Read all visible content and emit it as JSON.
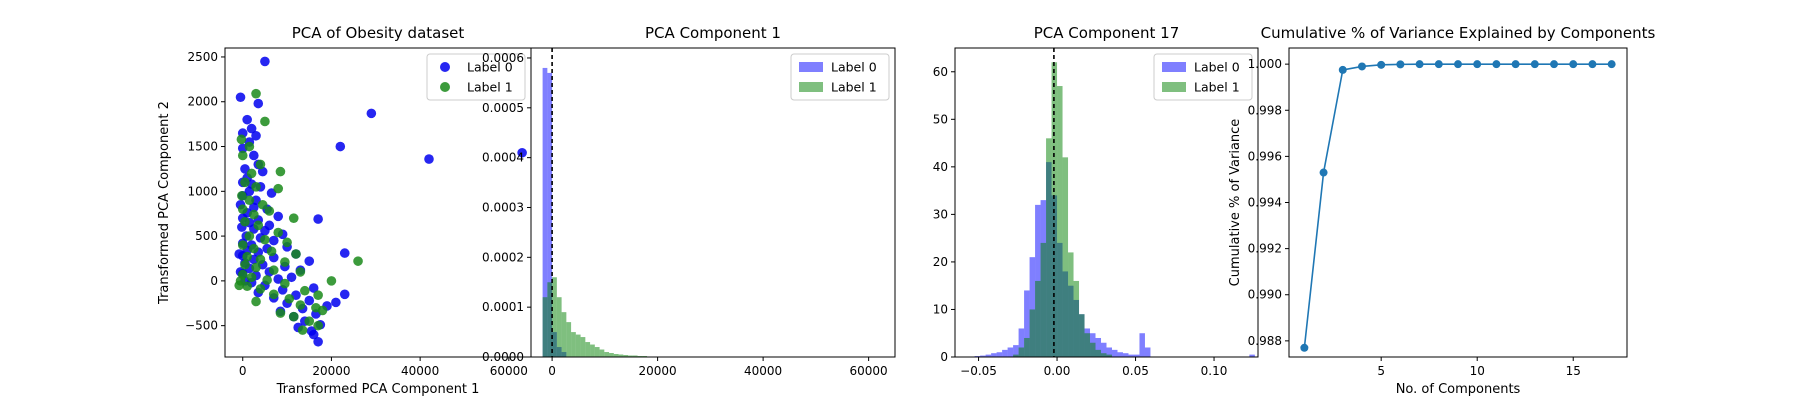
{
  "chart_data": [
    {
      "type": "scatter",
      "title": "PCA of Obesity dataset",
      "xlabel": "Transformed PCA Component 1",
      "ylabel": "Transformed PCA Component 2",
      "xlim": [
        -4000,
        65000
      ],
      "ylim": [
        -850,
        2600
      ],
      "xticks": [
        0,
        20000,
        40000,
        60000
      ],
      "xtick_labels": [
        "0",
        "20000",
        "40000",
        "60000"
      ],
      "yticks": [
        -500,
        0,
        500,
        1000,
        1500,
        2000,
        2500
      ],
      "ytick_labels": [
        "−500",
        "0",
        "500",
        "1000",
        "1500",
        "2000",
        "2500"
      ],
      "legend": "top-right",
      "series": [
        {
          "name": "Label 0",
          "color": "#0000ee",
          "points": [
            [
              5000,
              2450
            ],
            [
              -500,
              2050
            ],
            [
              3500,
              1980
            ],
            [
              1000,
              1800
            ],
            [
              2000,
              1700
            ],
            [
              0,
              1650
            ],
            [
              3000,
              1620
            ],
            [
              1500,
              1550
            ],
            [
              0,
              1480
            ],
            [
              2500,
              1400
            ],
            [
              3500,
              1300
            ],
            [
              500,
              1250
            ],
            [
              4500,
              1220
            ],
            [
              1000,
              1150
            ],
            [
              0,
              1100
            ],
            [
              2000,
              1080
            ],
            [
              4000,
              1050
            ],
            [
              1500,
              1000
            ],
            [
              6500,
              980
            ],
            [
              0,
              950
            ],
            [
              3000,
              900
            ],
            [
              -500,
              850
            ],
            [
              2500,
              820
            ],
            [
              5500,
              800
            ],
            [
              1000,
              760
            ],
            [
              8000,
              720
            ],
            [
              0,
              700
            ],
            [
              3500,
              680
            ],
            [
              1500,
              650
            ],
            [
              6000,
              620
            ],
            [
              -200,
              600
            ],
            [
              2500,
              580
            ],
            [
              5000,
              560
            ],
            [
              9000,
              520
            ],
            [
              800,
              500
            ],
            [
              4000,
              480
            ],
            [
              7000,
              450
            ],
            [
              0,
              420
            ],
            [
              2000,
              400
            ],
            [
              10000,
              380
            ],
            [
              5500,
              360
            ],
            [
              1000,
              340
            ],
            [
              3500,
              320
            ],
            [
              12000,
              300
            ],
            [
              0,
              280
            ],
            [
              7000,
              260
            ],
            [
              2500,
              240
            ],
            [
              15000,
              220
            ],
            [
              500,
              200
            ],
            [
              4500,
              180
            ],
            [
              9500,
              160
            ],
            [
              1500,
              140
            ],
            [
              13000,
              120
            ],
            [
              6000,
              100
            ],
            [
              0,
              80
            ],
            [
              3000,
              60
            ],
            [
              11000,
              40
            ],
            [
              8000,
              20
            ],
            [
              500,
              0
            ],
            [
              2000,
              -20
            ],
            [
              5000,
              -50
            ],
            [
              16000,
              -80
            ],
            [
              9000,
              -100
            ],
            [
              3500,
              -130
            ],
            [
              12000,
              -160
            ],
            [
              7000,
              -190
            ],
            [
              15000,
              -220
            ],
            [
              10000,
              -250
            ],
            [
              19000,
              -280
            ],
            [
              13500,
              -310
            ],
            [
              8500,
              -340
            ],
            [
              16500,
              -370
            ],
            [
              11500,
              -400
            ],
            [
              14000,
              -450
            ],
            [
              17500,
              -490
            ],
            [
              12500,
              -520
            ],
            [
              15500,
              -560
            ],
            [
              16000,
              -600
            ],
            [
              17000,
              -680
            ],
            [
              21000,
              -240
            ],
            [
              23000,
              -150
            ],
            [
              23000,
              310
            ],
            [
              22000,
              1500
            ],
            [
              29000,
              1870
            ],
            [
              42000,
              1360
            ],
            [
              63000,
              1430
            ],
            [
              17000,
              690
            ],
            [
              -800,
              300
            ],
            [
              -500,
              100
            ]
          ]
        },
        {
          "name": "Label 1",
          "color": "#1a8a1a",
          "points": [
            [
              3000,
              2090
            ],
            [
              5000,
              1780
            ],
            [
              -300,
              1580
            ],
            [
              1500,
              1500
            ],
            [
              0,
              1400
            ],
            [
              4000,
              1300
            ],
            [
              2000,
              1200
            ],
            [
              8500,
              1220
            ],
            [
              500,
              1100
            ],
            [
              3000,
              1050
            ],
            [
              8000,
              1030
            ],
            [
              -200,
              950
            ],
            [
              1500,
              900
            ],
            [
              4500,
              850
            ],
            [
              0,
              800
            ],
            [
              6000,
              780
            ],
            [
              2500,
              740
            ],
            [
              11500,
              700
            ],
            [
              500,
              660
            ],
            [
              3500,
              620
            ],
            [
              8000,
              540
            ],
            [
              1500,
              500
            ],
            [
              5000,
              460
            ],
            [
              10000,
              430
            ],
            [
              0,
              400
            ],
            [
              2500,
              360
            ],
            [
              6500,
              330
            ],
            [
              12000,
              300
            ],
            [
              1000,
              270
            ],
            [
              4000,
              240
            ],
            [
              9500,
              210
            ],
            [
              26000,
              220
            ],
            [
              500,
              180
            ],
            [
              3000,
              150
            ],
            [
              7000,
              120
            ],
            [
              13000,
              100
            ],
            [
              0,
              70
            ],
            [
              2000,
              40
            ],
            [
              5500,
              10
            ],
            [
              20000,
              0
            ],
            [
              9500,
              -30
            ],
            [
              1000,
              -60
            ],
            [
              4000,
              -90
            ],
            [
              14000,
              -110
            ],
            [
              7000,
              -150
            ],
            [
              17000,
              -160
            ],
            [
              10500,
              -200
            ],
            [
              3000,
              -230
            ],
            [
              13000,
              -270
            ],
            [
              16500,
              -300
            ],
            [
              18000,
              -330
            ],
            [
              8500,
              -360
            ],
            [
              11500,
              -400
            ],
            [
              15000,
              -450
            ],
            [
              17000,
              -500
            ],
            [
              13500,
              -550
            ],
            [
              -500,
              0
            ],
            [
              -800,
              -50
            ]
          ]
        }
      ]
    },
    {
      "type": "histogram",
      "title": "PCA Component 1",
      "xlim": [
        -4000,
        65000
      ],
      "ylim": [
        0,
        0.00062
      ],
      "xticks": [
        0,
        20000,
        40000,
        60000
      ],
      "xtick_labels": [
        "0",
        "20000",
        "40000",
        "60000"
      ],
      "yticks": [
        0,
        0.0001,
        0.0002,
        0.0003,
        0.0004,
        0.0005,
        0.0006
      ],
      "ytick_labels": [
        "0.0000",
        "0.0001",
        "0.0002",
        "0.0003",
        "0.0004",
        "0.0005",
        "0.0006"
      ],
      "legend": "top-right",
      "vline": 0,
      "series": [
        {
          "name": "Label 0",
          "color": "#0000ff",
          "alpha": 0.5,
          "bin_width": 900,
          "bins": [
            [
              -1800,
              0.00058
            ],
            [
              -900,
              0.00057
            ],
            [
              0,
              5e-05
            ],
            [
              900,
              2e-05
            ],
            [
              1800,
              1e-05
            ]
          ]
        },
        {
          "name": "Label 1",
          "color": "#008000",
          "alpha": 0.5,
          "bin_width": 900,
          "bins": [
            [
              -1800,
              0.00012
            ],
            [
              -900,
              0.00015
            ],
            [
              0,
              0.00016
            ],
            [
              900,
              0.00012
            ],
            [
              1800,
              9e-05
            ],
            [
              2700,
              7e-05
            ],
            [
              3600,
              5e-05
            ],
            [
              4500,
              4.5e-05
            ],
            [
              5400,
              4e-05
            ],
            [
              6300,
              3e-05
            ],
            [
              7200,
              2.5e-05
            ],
            [
              8100,
              2e-05
            ],
            [
              9000,
              1.5e-05
            ],
            [
              9900,
              1e-05
            ],
            [
              10800,
              8e-06
            ],
            [
              11700,
              6e-06
            ],
            [
              12600,
              5e-06
            ],
            [
              13500,
              4e-06
            ],
            [
              14400,
              3e-06
            ],
            [
              15300,
              3e-06
            ],
            [
              16200,
              2e-06
            ],
            [
              17100,
              2e-06
            ]
          ]
        }
      ]
    },
    {
      "type": "histogram",
      "title": "PCA Component 17",
      "xlim": [
        -0.065,
        0.128
      ],
      "ylim": [
        0,
        65
      ],
      "xticks": [
        -0.05,
        0.0,
        0.05,
        0.1
      ],
      "xtick_labels": [
        "−0.05",
        "0.00",
        "0.05",
        "0.10"
      ],
      "yticks": [
        0,
        10,
        20,
        30,
        40,
        50,
        60
      ],
      "ytick_labels": [
        "0",
        "10",
        "20",
        "30",
        "40",
        "50",
        "60"
      ],
      "legend": "top-right",
      "vline": -0.002,
      "series": [
        {
          "name": "Label 0",
          "color": "#0000ff",
          "alpha": 0.5,
          "bin_width": 0.0035,
          "bins": [
            [
              -0.0525,
              0.2
            ],
            [
              -0.049,
              0.3
            ],
            [
              -0.0455,
              0.5
            ],
            [
              -0.042,
              0.8
            ],
            [
              -0.0385,
              1
            ],
            [
              -0.035,
              1.5
            ],
            [
              -0.0315,
              2
            ],
            [
              -0.028,
              2.5
            ],
            [
              -0.0245,
              6
            ],
            [
              -0.021,
              14
            ],
            [
              -0.0175,
              21
            ],
            [
              -0.014,
              32
            ],
            [
              -0.0105,
              33
            ],
            [
              -0.007,
              41
            ],
            [
              -0.0035,
              34
            ],
            [
              0,
              24
            ],
            [
              0.0035,
              18
            ],
            [
              0.007,
              15
            ],
            [
              0.0105,
              12
            ],
            [
              0.014,
              9
            ],
            [
              0.0175,
              6
            ],
            [
              0.021,
              5
            ],
            [
              0.0245,
              4
            ],
            [
              0.028,
              3
            ],
            [
              0.0315,
              2
            ],
            [
              0.035,
              1.5
            ],
            [
              0.0385,
              1
            ],
            [
              0.042,
              0.8
            ],
            [
              0.0455,
              0.5
            ],
            [
              0.049,
              0.5
            ],
            [
              0.0525,
              5
            ],
            [
              0.056,
              2
            ],
            [
              0.1225,
              0.5
            ]
          ]
        },
        {
          "name": "Label 1",
          "color": "#008000",
          "alpha": 0.5,
          "bin_width": 0.0035,
          "bins": [
            [
              -0.028,
              0.5
            ],
            [
              -0.0245,
              2
            ],
            [
              -0.021,
              4
            ],
            [
              -0.0175,
              10
            ],
            [
              -0.014,
              16
            ],
            [
              -0.0105,
              24
            ],
            [
              -0.007,
              46
            ],
            [
              -0.0035,
              62
            ],
            [
              0,
              57
            ],
            [
              0.0035,
              42
            ],
            [
              0.007,
              22
            ],
            [
              0.0105,
              16
            ],
            [
              0.014,
              9
            ],
            [
              0.0175,
              5
            ],
            [
              0.021,
              3
            ],
            [
              0.0245,
              1.5
            ],
            [
              0.028,
              0.8
            ],
            [
              0.0315,
              0.5
            ]
          ]
        }
      ]
    },
    {
      "type": "line",
      "title": "Cumulative % of Variance Explained by Components",
      "xlabel": "No. of Components",
      "ylabel": "Cumulative % of Variance",
      "xlim": [
        0.2,
        17.8
      ],
      "ylim": [
        0.9873,
        1.0007
      ],
      "xticks": [
        5,
        10,
        15
      ],
      "xtick_labels": [
        "5",
        "10",
        "15"
      ],
      "yticks": [
        0.988,
        0.99,
        0.992,
        0.994,
        0.996,
        0.998,
        1.0
      ],
      "ytick_labels": [
        "0.988",
        "0.990",
        "0.992",
        "0.994",
        "0.996",
        "0.998",
        "1.000"
      ],
      "color": "#1f77b4",
      "x": [
        1,
        2,
        3,
        4,
        5,
        6,
        7,
        8,
        9,
        10,
        11,
        12,
        13,
        14,
        15,
        16,
        17
      ],
      "y": [
        0.9877,
        0.9953,
        0.99975,
        0.9999,
        0.99997,
        0.99999,
        1.0,
        1.0,
        1.0,
        1.0,
        1.0,
        1.0,
        1.0,
        1.0,
        1.0,
        1.0,
        1.0
      ]
    }
  ]
}
